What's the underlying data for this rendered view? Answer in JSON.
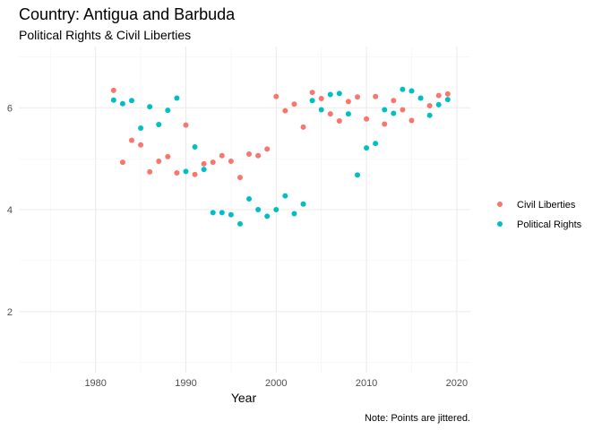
{
  "chart_data": {
    "type": "scatter",
    "title": "Country: Antigua and Barbuda",
    "subtitle": "Political Rights & Civil Liberties",
    "xlabel": "Year",
    "ylabel": "",
    "caption": "Note: Points are jittered.",
    "xlim": [
      1971.5,
      2021.5
    ],
    "ylim": [
      0.8,
      7.2
    ],
    "x_ticks": [
      1980,
      1990,
      2000,
      2010,
      2020
    ],
    "y_ticks": [
      2,
      4,
      6
    ],
    "grid": true,
    "legend_position": "right",
    "series": [
      {
        "name": "Civil Liberties",
        "color": "#F8766D",
        "points": [
          [
            1982,
            6.34
          ],
          [
            1983,
            4.93
          ],
          [
            1984,
            5.36
          ],
          [
            1985,
            5.27
          ],
          [
            1986,
            4.74
          ],
          [
            1987,
            4.95
          ],
          [
            1988,
            5.04
          ],
          [
            1989,
            4.72
          ],
          [
            1990,
            5.66
          ],
          [
            1991,
            4.69
          ],
          [
            1992,
            4.9
          ],
          [
            1993,
            4.93
          ],
          [
            1994,
            5.06
          ],
          [
            1995,
            4.95
          ],
          [
            1996,
            4.63
          ],
          [
            1997,
            5.09
          ],
          [
            1998,
            5.06
          ],
          [
            1999,
            5.19
          ],
          [
            2000,
            6.22
          ],
          [
            2001,
            5.94
          ],
          [
            2002,
            6.07
          ],
          [
            2003,
            5.62
          ],
          [
            2004,
            6.3
          ],
          [
            2005,
            6.18
          ],
          [
            2006,
            5.88
          ],
          [
            2007,
            5.74
          ],
          [
            2008,
            6.12
          ],
          [
            2009,
            6.21
          ],
          [
            2010,
            5.78
          ],
          [
            2011,
            6.22
          ],
          [
            2012,
            5.68
          ],
          [
            2013,
            6.14
          ],
          [
            2014,
            5.96
          ],
          [
            2015,
            5.75
          ],
          [
            2016,
            6.19
          ],
          [
            2017,
            6.04
          ],
          [
            2018,
            6.24
          ],
          [
            2019,
            6.27
          ]
        ]
      },
      {
        "name": "Political Rights",
        "color": "#00BFC4",
        "points": [
          [
            1982,
            6.15
          ],
          [
            1983,
            6.08
          ],
          [
            1984,
            6.14
          ],
          [
            1985,
            5.6
          ],
          [
            1986,
            6.02
          ],
          [
            1987,
            5.67
          ],
          [
            1988,
            5.95
          ],
          [
            1989,
            6.19
          ],
          [
            1990,
            4.75
          ],
          [
            1991,
            5.23
          ],
          [
            1992,
            4.79
          ],
          [
            1993,
            3.94
          ],
          [
            1994,
            3.94
          ],
          [
            1995,
            3.9
          ],
          [
            1996,
            3.72
          ],
          [
            1997,
            4.21
          ],
          [
            1998,
            4.0
          ],
          [
            1999,
            3.87
          ],
          [
            2000,
            4.0
          ],
          [
            2001,
            4.27
          ],
          [
            2002,
            3.92
          ],
          [
            2003,
            4.11
          ],
          [
            2004,
            6.14
          ],
          [
            2005,
            5.96
          ],
          [
            2006,
            6.26
          ],
          [
            2007,
            6.28
          ],
          [
            2008,
            5.88
          ],
          [
            2009,
            4.68
          ],
          [
            2010,
            5.21
          ],
          [
            2011,
            5.3
          ],
          [
            2012,
            5.96
          ],
          [
            2013,
            5.89
          ],
          [
            2014,
            6.36
          ],
          [
            2015,
            6.33
          ],
          [
            2016,
            6.19
          ],
          [
            2017,
            5.85
          ],
          [
            2018,
            6.06
          ],
          [
            2019,
            6.16
          ]
        ]
      }
    ]
  }
}
